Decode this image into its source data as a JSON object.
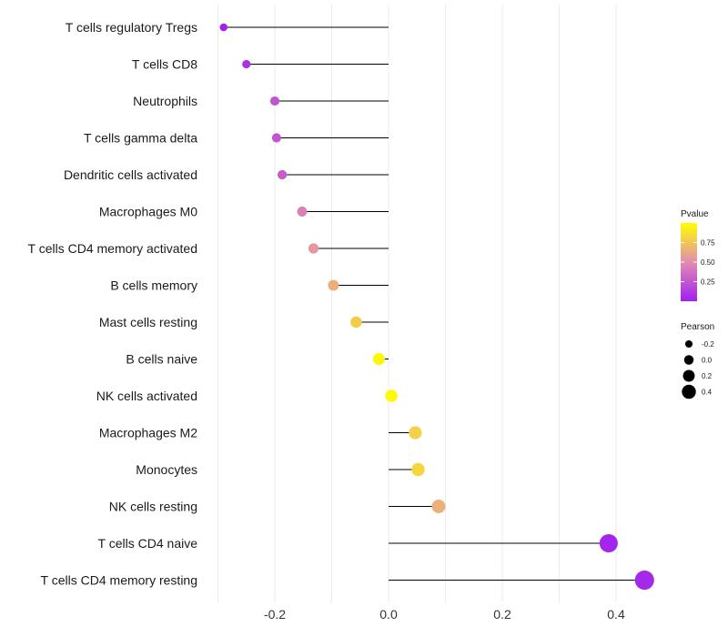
{
  "chart_data": {
    "type": "lollipop",
    "title": "",
    "xlabel": "",
    "ylabel": "",
    "xlim": [
      -0.3,
      0.45
    ],
    "x_ticks": [
      -0.2,
      0.0,
      0.2,
      0.4
    ],
    "x_tick_labels": [
      "-0.2",
      "0.0",
      "0.2",
      "0.4"
    ],
    "grid": true,
    "categories": [
      "T cells regulatory  Tregs",
      "T cells CD8",
      "Neutrophils",
      "T cells gamma delta",
      "Dendritic cells activated",
      "Macrophages M0",
      "T cells CD4 memory activated",
      "B cells memory",
      "Mast cells resting",
      "B cells naive",
      "NK cells activated",
      "Macrophages M2",
      "Monocytes",
      "NK cells resting",
      "T cells CD4 naive",
      "T cells CD4 memory resting"
    ],
    "pearson": [
      -0.29,
      -0.25,
      -0.2,
      -0.197,
      -0.187,
      -0.152,
      -0.132,
      -0.097,
      -0.057,
      -0.017,
      0.005,
      0.047,
      0.052,
      0.088,
      0.387,
      0.45
    ],
    "pvalue": [
      0.01,
      0.08,
      0.24,
      0.25,
      0.28,
      0.45,
      0.55,
      0.65,
      0.78,
      0.97,
      0.98,
      0.8,
      0.82,
      0.66,
      0.03,
      0.04
    ],
    "legend": {
      "position": "right",
      "color_title": "Pvalue",
      "color_ticks": [
        0.25,
        0.5,
        0.75
      ],
      "color_tick_labels": [
        "0.25",
        "0.50",
        "0.75"
      ],
      "color_low": "#a020f0",
      "color_mid": "#e38cb0",
      "color_high": "#ffff00",
      "size_title": "Pearson",
      "size_values": [
        -0.2,
        0.0,
        0.2,
        0.4
      ],
      "size_labels": [
        "-0.2",
        "0.0",
        "0.2",
        "0.4"
      ]
    },
    "colors": {
      "grid": "#ebebeb",
      "segment": "#000000",
      "text": "#1a1a1a"
    }
  }
}
